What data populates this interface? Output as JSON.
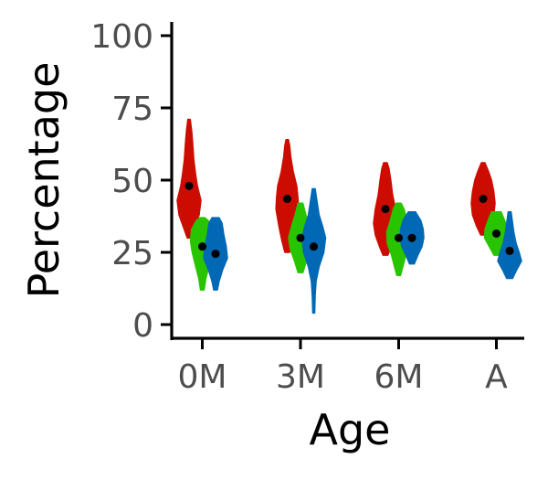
{
  "chart_data": {
    "type": "violin",
    "xlabel": "Age",
    "ylabel": "Percentage",
    "categories": [
      "0M",
      "3M",
      "6M",
      "A"
    ],
    "ylim": [
      0,
      100
    ],
    "yticks": [
      0,
      25,
      50,
      75,
      100
    ],
    "grid": false,
    "legend": "none",
    "series": [
      {
        "color": "#cc0c00",
        "means": [
          48,
          43.5,
          40,
          43.5
        ],
        "violins": [
          {
            "min": 30,
            "max": 71,
            "profile": [
              [
                30,
                0.15
              ],
              [
                34,
                0.5
              ],
              [
                38,
                0.85
              ],
              [
                43,
                1.0
              ],
              [
                48,
                0.7
              ],
              [
                52,
                0.55
              ],
              [
                57,
                0.4
              ],
              [
                63,
                0.3
              ],
              [
                67,
                0.22
              ],
              [
                71,
                0.1
              ]
            ]
          },
          {
            "min": 25,
            "max": 64,
            "profile": [
              [
                25,
                0.2
              ],
              [
                29,
                0.45
              ],
              [
                34,
                0.7
              ],
              [
                40,
                0.95
              ],
              [
                44,
                0.9
              ],
              [
                48,
                0.8
              ],
              [
                53,
                0.5
              ],
              [
                58,
                0.3
              ],
              [
                62,
                0.2
              ],
              [
                64,
                0.1
              ]
            ]
          },
          {
            "min": 24,
            "max": 56,
            "profile": [
              [
                24,
                0.2
              ],
              [
                27,
                0.5
              ],
              [
                31,
                0.85
              ],
              [
                35,
                1.0
              ],
              [
                40,
                0.85
              ],
              [
                45,
                0.6
              ],
              [
                50,
                0.45
              ],
              [
                54,
                0.3
              ],
              [
                56,
                0.15
              ]
            ]
          },
          {
            "min": 31,
            "max": 56,
            "profile": [
              [
                31,
                0.2
              ],
              [
                34,
                0.55
              ],
              [
                38,
                0.9
              ],
              [
                42,
                1.0
              ],
              [
                46,
                0.9
              ],
              [
                50,
                0.7
              ],
              [
                53,
                0.45
              ],
              [
                56,
                0.15
              ]
            ]
          }
        ]
      },
      {
        "color": "#29c400",
        "means": [
          27,
          30,
          30,
          31.5
        ],
        "violins": [
          {
            "min": 12,
            "max": 37,
            "profile": [
              [
                12,
                0.15
              ],
              [
                16,
                0.3
              ],
              [
                20,
                0.55
              ],
              [
                25,
                0.85
              ],
              [
                29,
                1.0
              ],
              [
                33,
                0.9
              ],
              [
                36,
                0.5
              ],
              [
                37,
                0.2
              ]
            ]
          },
          {
            "min": 18,
            "max": 42,
            "profile": [
              [
                18,
                0.2
              ],
              [
                22,
                0.5
              ],
              [
                26,
                0.85
              ],
              [
                30,
                1.0
              ],
              [
                34,
                0.75
              ],
              [
                38,
                0.45
              ],
              [
                42,
                0.2
              ]
            ]
          },
          {
            "min": 17,
            "max": 42,
            "profile": [
              [
                17,
                0.15
              ],
              [
                20,
                0.35
              ],
              [
                24,
                0.6
              ],
              [
                28,
                0.95
              ],
              [
                32,
                1.0
              ],
              [
                36,
                0.7
              ],
              [
                40,
                0.45
              ],
              [
                42,
                0.2
              ]
            ]
          },
          {
            "min": 24,
            "max": 39,
            "profile": [
              [
                24,
                0.2
              ],
              [
                27,
                0.6
              ],
              [
                30,
                1.0
              ],
              [
                33,
                0.95
              ],
              [
                36,
                0.7
              ],
              [
                39,
                0.4
              ]
            ]
          }
        ]
      },
      {
        "color": "#0068b4",
        "means": [
          24.5,
          27,
          30,
          25.5
        ],
        "violins": [
          {
            "min": 12,
            "max": 37,
            "profile": [
              [
                12,
                0.15
              ],
              [
                15,
                0.3
              ],
              [
                19,
                0.6
              ],
              [
                23,
                1.0
              ],
              [
                27,
                0.9
              ],
              [
                31,
                0.7
              ],
              [
                35,
                0.55
              ],
              [
                37,
                0.3
              ]
            ]
          },
          {
            "min": 4,
            "max": 47,
            "profile": [
              [
                4,
                0.08
              ],
              [
                10,
                0.12
              ],
              [
                15,
                0.2
              ],
              [
                20,
                0.45
              ],
              [
                25,
                0.85
              ],
              [
                30,
                1.0
              ],
              [
                34,
                0.75
              ],
              [
                38,
                0.45
              ],
              [
                42,
                0.3
              ],
              [
                47,
                0.12
              ]
            ]
          },
          {
            "min": 21,
            "max": 39,
            "profile": [
              [
                21,
                0.2
              ],
              [
                24,
                0.5
              ],
              [
                27,
                0.85
              ],
              [
                30,
                1.0
              ],
              [
                33,
                0.95
              ],
              [
                36,
                0.75
              ],
              [
                39,
                0.3
              ]
            ]
          },
          {
            "min": 16,
            "max": 39,
            "profile": [
              [
                16,
                0.25
              ],
              [
                19,
                0.6
              ],
              [
                22,
                1.0
              ],
              [
                25,
                0.8
              ],
              [
                28,
                0.55
              ],
              [
                32,
                0.35
              ],
              [
                36,
                0.22
              ],
              [
                39,
                0.12
              ]
            ]
          }
        ]
      }
    ]
  }
}
